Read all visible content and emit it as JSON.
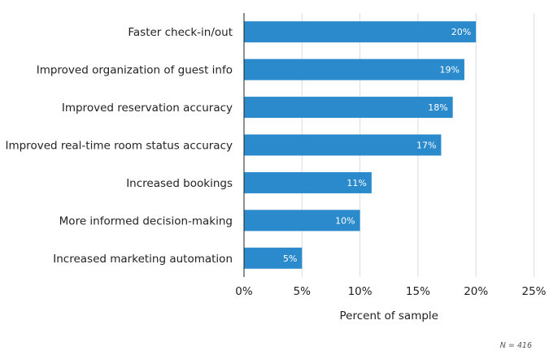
{
  "chart_data": {
    "type": "bar",
    "orientation": "horizontal",
    "categories": [
      "Faster check-in/out",
      "Improved organization of guest info",
      "Improved reservation accuracy",
      "Improved real-time room status accuracy",
      "Increased bookings",
      "More informed decision-making",
      "Increased marketing automation"
    ],
    "values": [
      20,
      19,
      18,
      17,
      11,
      10,
      5
    ],
    "data_labels": [
      "20%",
      "19%",
      "18%",
      "17%",
      "11%",
      "10%",
      "5%"
    ],
    "xlabel": "Percent of sample",
    "ylabel": "",
    "xlim": [
      0,
      25
    ],
    "x_ticks": [
      0,
      5,
      10,
      15,
      20,
      25
    ],
    "x_tick_labels": [
      "0%",
      "5%",
      "10%",
      "15%",
      "20%",
      "25%"
    ],
    "grid": "vertical",
    "legend": "none",
    "annotation": "N = 416",
    "colors": {
      "bar": "#2a8acb",
      "grid": "#d9dee3",
      "axis": "#222222",
      "data_label": "#ffffff"
    }
  }
}
